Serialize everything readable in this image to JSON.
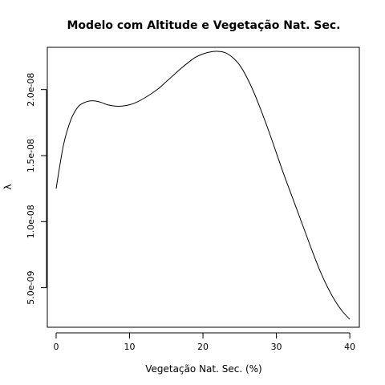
{
  "chart_data": {
    "type": "line",
    "title": "Modelo com Altitude e Vegetação Nat. Sec.",
    "xlabel": "Vegetação Nat. Sec. (%)",
    "ylabel": "λ",
    "xlim": [
      -1.2,
      41.3
    ],
    "ylim": [
      2e-09,
      2.32e-08
    ],
    "xticks": [
      0,
      10,
      20,
      30,
      40
    ],
    "xtick_labels": [
      "0",
      "10",
      "20",
      "30",
      "40"
    ],
    "yticks": [
      5e-09,
      1e-08,
      1.5e-08,
      2e-08
    ],
    "ytick_labels": [
      "5.0e-09",
      "1.0e-08",
      "1.5e-08",
      "2.0e-08"
    ],
    "grid": false,
    "series": [
      {
        "x": [
          0,
          1,
          2,
          3,
          4,
          5,
          6,
          7,
          8,
          9,
          10,
          11,
          12,
          13,
          14,
          15,
          16,
          17,
          18,
          19,
          20,
          21,
          22,
          23,
          24,
          25,
          26,
          27,
          28,
          29,
          30,
          31,
          32,
          33,
          34,
          35,
          36,
          37,
          38,
          39,
          40
        ],
        "values": [
          1.25e-08,
          1.58e-08,
          1.77e-08,
          1.87e-08,
          1.905e-08,
          1.915e-08,
          1.905e-08,
          1.885e-08,
          1.875e-08,
          1.875e-08,
          1.885e-08,
          1.905e-08,
          1.935e-08,
          1.97e-08,
          2.01e-08,
          2.06e-08,
          2.11e-08,
          2.16e-08,
          2.205e-08,
          2.245e-08,
          2.27e-08,
          2.285e-08,
          2.29e-08,
          2.28e-08,
          2.245e-08,
          2.185e-08,
          2.09e-08,
          1.97e-08,
          1.83e-08,
          1.68e-08,
          1.52e-08,
          1.36e-08,
          1.21e-08,
          1.06e-08,
          9.1e-09,
          7.6e-09,
          6.2e-09,
          5e-09,
          4e-09,
          3.2e-09,
          2.6e-09
        ]
      }
    ]
  }
}
